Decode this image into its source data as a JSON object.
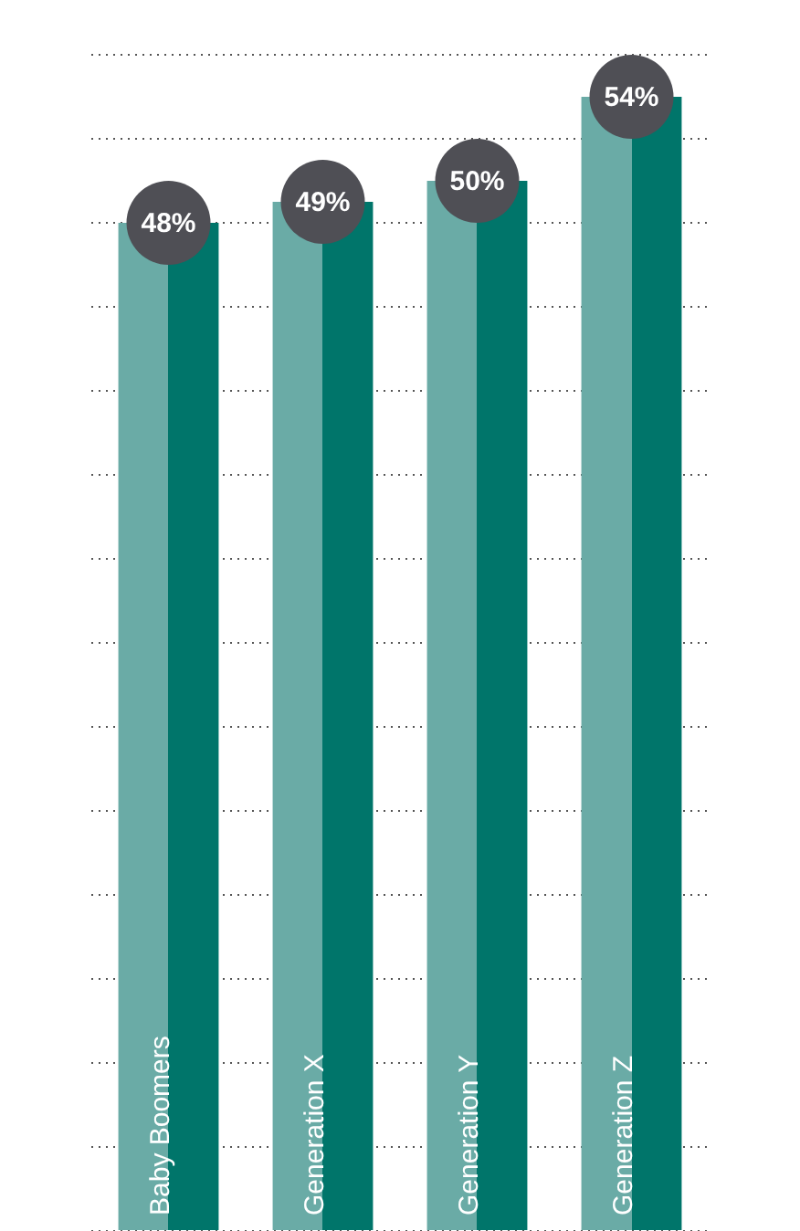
{
  "chart_data": {
    "type": "bar",
    "categories": [
      "Baby Boomers",
      "Generation X",
      "Generation Y",
      "Generation Z"
    ],
    "values": [
      48,
      49,
      50,
      54
    ],
    "color": "#6aaba6",
    "value_labels": [
      "48%",
      "49%",
      "50%",
      "54%"
    ],
    "ylim": [
      0,
      56
    ],
    "yticks": [
      {
        "value": 0,
        "label": null
      },
      {
        "value": 4,
        "label": null
      },
      {
        "value": 8,
        "label": null
      },
      {
        "value": 12,
        "label": null
      },
      {
        "value": 16,
        "label": null
      },
      {
        "value": 20,
        "label": null
      },
      {
        "value": 24,
        "label": null
      },
      {
        "value": 28,
        "label": null
      },
      {
        "value": 32,
        "label": null
      },
      {
        "value": 36,
        "label": null
      },
      {
        "value": 40,
        "label": null
      },
      {
        "value": 44,
        "label": null
      },
      {
        "value": 48,
        "label": null
      },
      {
        "value": 52,
        "label": null
      },
      {
        "value": 56,
        "label": null
      }
    ],
    "grid": "y",
    "tick_labels": "x",
    "legend": false
  }
}
